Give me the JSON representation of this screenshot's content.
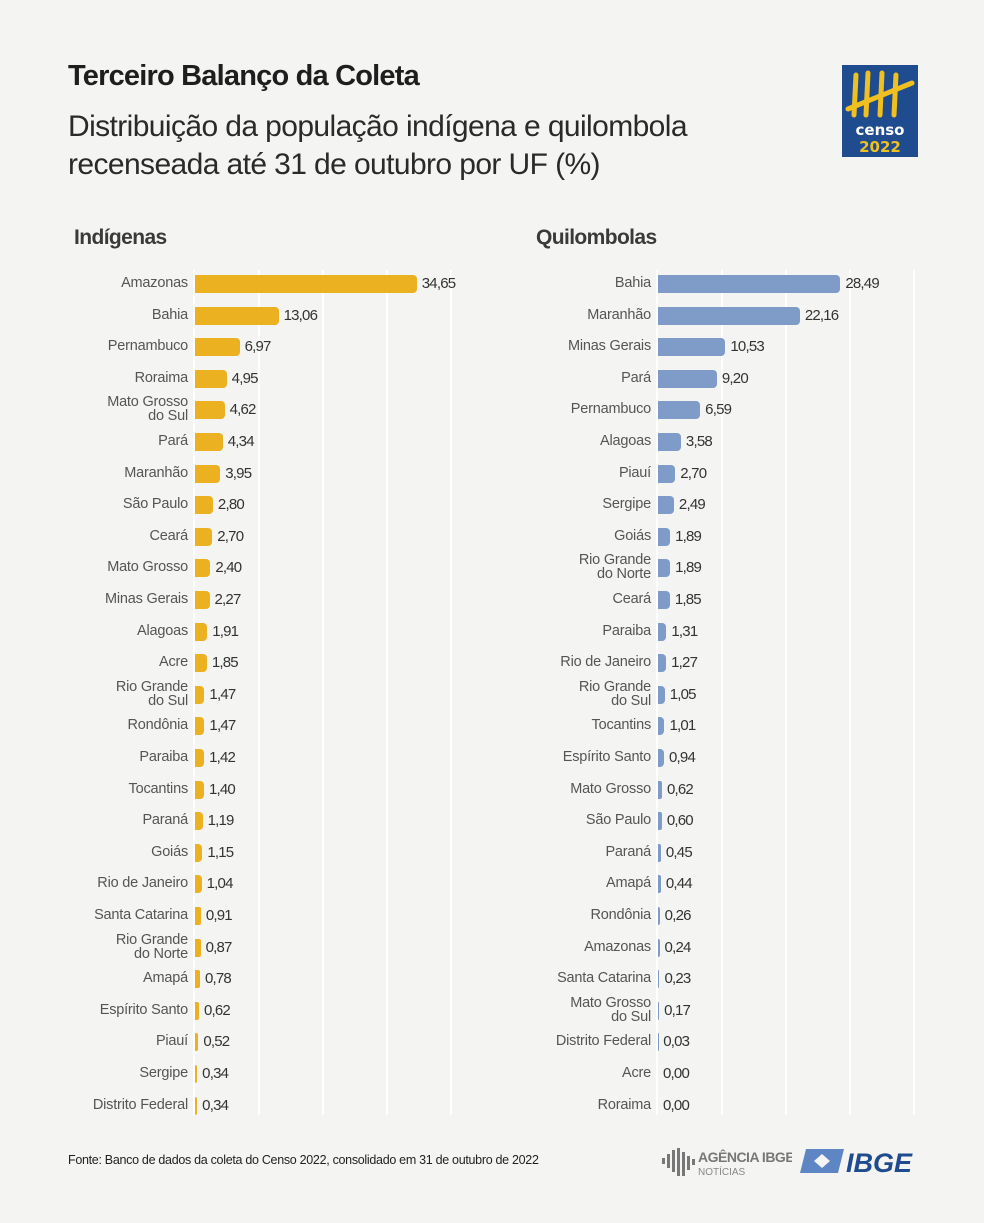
{
  "header": {
    "title": "Terceiro Balanço da Coleta",
    "subtitle": "Distribuição da população indígena e quilombola recenseada até 31 de outubro por UF (%)",
    "logo_text": "censo 2022"
  },
  "footer": {
    "source": "Fonte: Banco de dados da coleta do Censo 2022, consolidado em 31 de outubro de 2022",
    "agencia_logo_text": "AGÊNCIA IBGE NOTÍCIAS",
    "ibge_logo_text": "IBGE"
  },
  "chart_data": [
    {
      "type": "bar",
      "orientation": "horizontal",
      "title": "Indígenas",
      "color": "#ecb121",
      "xlim": [
        0,
        40
      ],
      "grid": true,
      "categories": [
        "Amazonas",
        "Bahia",
        "Pernambuco",
        "Roraima",
        "Mato Grosso do Sul",
        "Pará",
        "Maranhão",
        "São Paulo",
        "Ceará",
        "Mato Grosso",
        "Minas Gerais",
        "Alagoas",
        "Acre",
        "Rio Grande do Sul",
        "Rondônia",
        "Paraiba",
        "Tocantins",
        "Paraná",
        "Goiás",
        "Rio de Janeiro",
        "Santa Catarina",
        "Rio Grande do Norte",
        "Amapá",
        "Espírito Santo",
        "Piauí",
        "Sergipe",
        "Distrito Federal"
      ],
      "values": [
        34.65,
        13.06,
        6.97,
        4.95,
        4.62,
        4.34,
        3.95,
        2.8,
        2.7,
        2.4,
        2.27,
        1.91,
        1.85,
        1.47,
        1.47,
        1.42,
        1.4,
        1.19,
        1.15,
        1.04,
        0.91,
        0.87,
        0.78,
        0.62,
        0.52,
        0.34,
        0.34
      ],
      "data_labels": [
        "34,65",
        "13,06",
        "6,97",
        "4,95",
        "4,62",
        "4,34",
        "3,95",
        "2,80",
        "2,70",
        "2,40",
        "2,27",
        "1,91",
        "1,85",
        "1,47",
        "1,47",
        "1,42",
        "1,40",
        "1,19",
        "1,15",
        "1,04",
        "0,91",
        "0,87",
        "0,78",
        "0,62",
        "0,52",
        "0,34",
        "0,34"
      ]
    },
    {
      "type": "bar",
      "orientation": "horizontal",
      "title": "Quilombolas",
      "color": "#7f9cc9",
      "xlim": [
        0,
        40
      ],
      "grid": true,
      "categories": [
        "Bahia",
        "Maranhão",
        "Minas Gerais",
        "Pará",
        "Pernambuco",
        "Alagoas",
        "Piauí",
        "Sergipe",
        "Goiás",
        "Rio Grande do Norte",
        "Ceará",
        "Paraiba",
        "Rio de Janeiro",
        "Rio Grande do Sul",
        "Tocantins",
        "Espírito Santo",
        "Mato Grosso",
        "São Paulo",
        "Paraná",
        "Amapá",
        "Rondônia",
        "Amazonas",
        "Santa Catarina",
        "Mato Grosso do Sul",
        "Distrito Federal",
        "Acre",
        "Roraima"
      ],
      "values": [
        28.49,
        22.16,
        10.53,
        9.2,
        6.59,
        3.58,
        2.7,
        2.49,
        1.89,
        1.89,
        1.85,
        1.31,
        1.27,
        1.05,
        1.01,
        0.94,
        0.62,
        0.6,
        0.45,
        0.44,
        0.26,
        0.24,
        0.23,
        0.17,
        0.03,
        0.0,
        0.0
      ],
      "data_labels": [
        "28,49",
        "22,16",
        "10,53",
        "9,20",
        "6,59",
        "3,58",
        "2,70",
        "2,49",
        "1,89",
        "1,89",
        "1,85",
        "1,31",
        "1,27",
        "1,05",
        "1,01",
        "0,94",
        "0,62",
        "0,60",
        "0,45",
        "0,44",
        "0,26",
        "0,24",
        "0,23",
        "0,17",
        "0,03",
        "0,00",
        "0,00"
      ]
    }
  ]
}
